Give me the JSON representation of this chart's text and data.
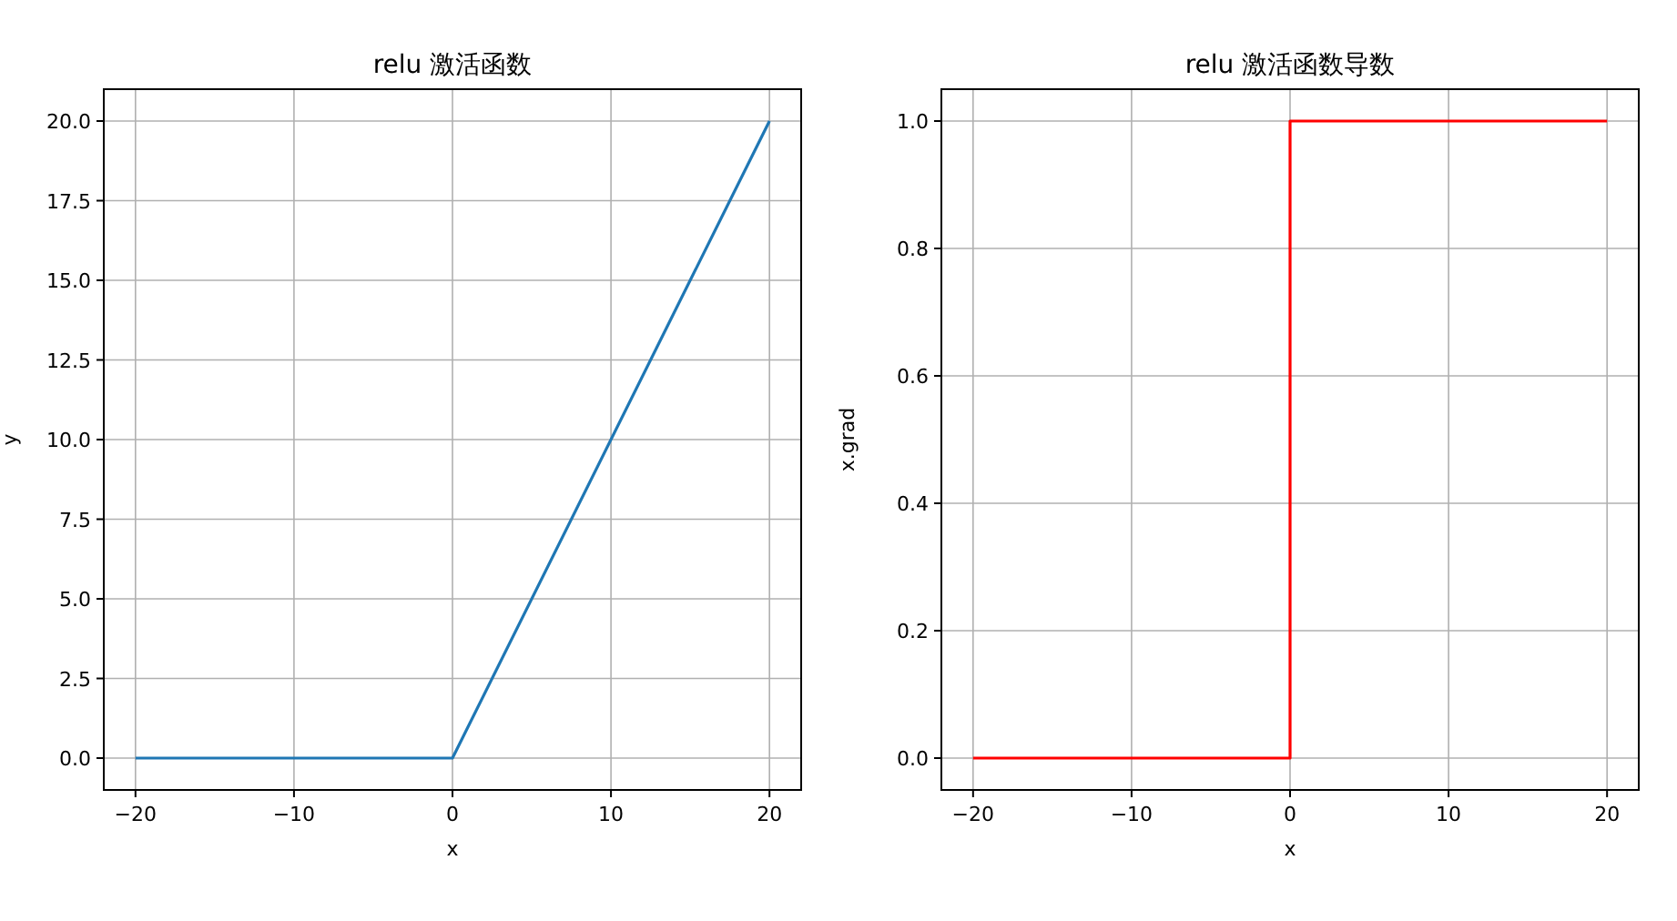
{
  "chart_data": [
    {
      "type": "line",
      "title": "relu 激活函数",
      "xlabel": "x",
      "ylabel": "y",
      "x": [
        -20,
        0,
        20
      ],
      "series": [
        {
          "color": "#1f77b4",
          "values": [
            0,
            0,
            20
          ]
        }
      ],
      "xlim": [
        -22,
        22
      ],
      "ylim": [
        -1,
        21
      ],
      "xticks": [
        -20,
        -10,
        0,
        10,
        20
      ],
      "yticks": [
        {
          "value": 0,
          "label": "0.0"
        },
        {
          "value": 2.5,
          "label": "2.5"
        },
        {
          "value": 5,
          "label": "5.0"
        },
        {
          "value": 7.5,
          "label": "7.5"
        },
        {
          "value": 10,
          "label": "10.0"
        },
        {
          "value": 12.5,
          "label": "12.5"
        },
        {
          "value": 15,
          "label": "15.0"
        },
        {
          "value": 17.5,
          "label": "17.5"
        },
        {
          "value": 20,
          "label": "20.0"
        }
      ],
      "grid": true
    },
    {
      "type": "line",
      "title": "relu 激活函数导数",
      "xlabel": "x",
      "ylabel": "x.grad",
      "x": [
        -20,
        0,
        0,
        20
      ],
      "series": [
        {
          "color": "#ff0000",
          "values": [
            0,
            0,
            1,
            1
          ]
        }
      ],
      "xlim": [
        -22,
        22
      ],
      "ylim": [
        -0.05,
        1.05
      ],
      "xticks": [
        -20,
        -10,
        0,
        10,
        20
      ],
      "yticks": [
        {
          "value": 0,
          "label": "0.0"
        },
        {
          "value": 0.2,
          "label": "0.2"
        },
        {
          "value": 0.4,
          "label": "0.4"
        },
        {
          "value": 0.6,
          "label": "0.6"
        },
        {
          "value": 0.8,
          "label": "0.8"
        },
        {
          "value": 1,
          "label": "1.0"
        }
      ],
      "grid": true
    }
  ]
}
